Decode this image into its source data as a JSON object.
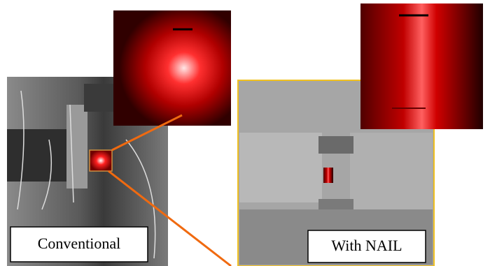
{
  "labels": {
    "left": "Conventional",
    "right": "With NAIL"
  }
}
